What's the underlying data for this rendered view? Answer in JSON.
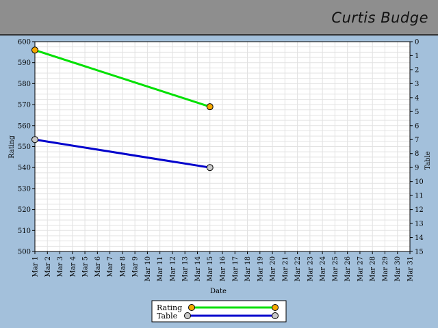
{
  "header": {
    "title": "Curtis Budge"
  },
  "chart_data": {
    "type": "line",
    "xlabel": "Date",
    "ylabel": "Rating",
    "y2label": "Table",
    "ylim": [
      500,
      600
    ],
    "y2lim": [
      0,
      15
    ],
    "y2_inverted": true,
    "grid": true,
    "legend_position": "bottom-center",
    "categories": [
      "Mar 1",
      "Mar 2",
      "Mar 3",
      "Mar 4",
      "Mar 5",
      "Mar 6",
      "Mar 7",
      "Mar 8",
      "Mar 9",
      "Mar 10",
      "Mar 11",
      "Mar 12",
      "Mar 13",
      "Mar 14",
      "Mar 15",
      "Mar 16",
      "Mar 17",
      "Mar 18",
      "Mar 19",
      "Mar 20",
      "Mar 21",
      "Mar 22",
      "Mar 23",
      "Mar 24",
      "Mar 25",
      "Mar 26",
      "Mar 27",
      "Mar 28",
      "Mar 29",
      "Mar 30",
      "Mar 31"
    ],
    "yticks": [
      500,
      510,
      520,
      530,
      540,
      550,
      560,
      570,
      580,
      590,
      600
    ],
    "y2ticks": [
      0,
      1,
      2,
      3,
      4,
      5,
      6,
      7,
      8,
      9,
      10,
      11,
      12,
      13,
      14,
      15
    ],
    "series": [
      {
        "name": "Rating",
        "axis": "left",
        "color": "#00e000",
        "marker": "#f5a800",
        "points": [
          {
            "x": "Mar 1",
            "y": 596
          },
          {
            "x": "Mar 15",
            "y": 569
          }
        ]
      },
      {
        "name": "Table",
        "axis": "right",
        "color": "#0000cc",
        "marker": "#c8c8c8",
        "points": [
          {
            "x": "Mar 1",
            "y": 7
          },
          {
            "x": "Mar 15",
            "y": 9
          }
        ]
      }
    ]
  }
}
